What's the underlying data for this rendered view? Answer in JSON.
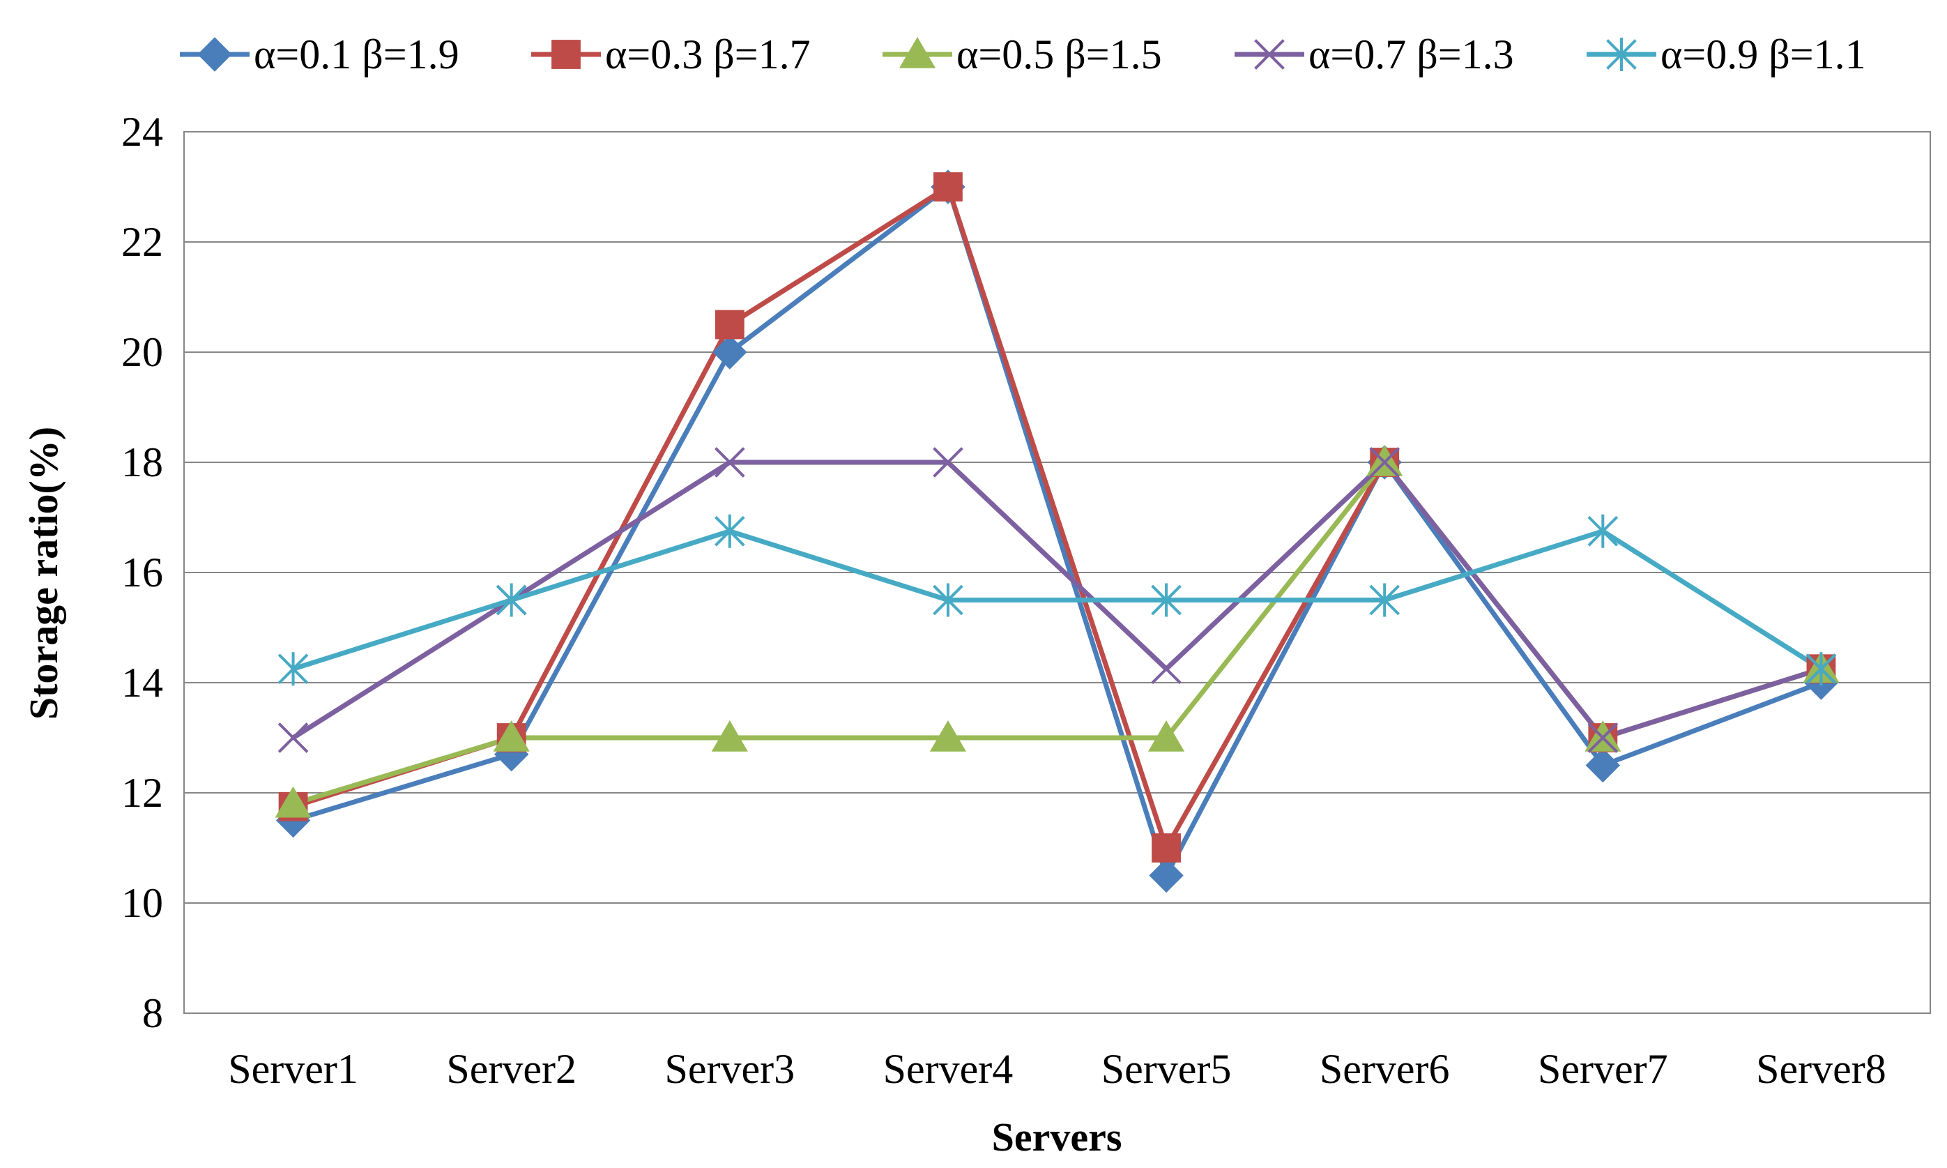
{
  "chart_data": {
    "type": "line",
    "title": "",
    "xlabel": "Servers",
    "ylabel": "Storage  ratio(%)",
    "ylim": [
      8,
      24
    ],
    "yticks": [
      8,
      10,
      12,
      14,
      16,
      18,
      20,
      22,
      24
    ],
    "grid": true,
    "legend_position": "top",
    "categories": [
      "Server1",
      "Server2",
      "Server3",
      "Server4",
      "Server5",
      "Server6",
      "Server7",
      "Server8"
    ],
    "series": [
      {
        "name": "α=0.1 β=1.9",
        "color": "#4a7ebb",
        "marker": "diamond",
        "values": [
          11.5,
          12.7,
          20.0,
          23.0,
          10.5,
          18.0,
          12.5,
          14.0
        ]
      },
      {
        "name": "α=0.3 β=1.7",
        "color": "#be4b48",
        "marker": "square",
        "values": [
          11.75,
          13.0,
          20.5,
          23.0,
          11.0,
          18.0,
          13.0,
          14.25
        ]
      },
      {
        "name": "α=0.5 β=1.5",
        "color": "#98b954",
        "marker": "triangle",
        "values": [
          11.8,
          13.0,
          13.0,
          13.0,
          13.0,
          18.0,
          13.0,
          14.25
        ]
      },
      {
        "name": "α=0.7 β=1.3",
        "color": "#7d60a0",
        "marker": "x",
        "values": [
          13.0,
          15.5,
          18.0,
          18.0,
          14.25,
          18.0,
          13.0,
          14.25
        ]
      },
      {
        "name": "α=0.9 β=1.1",
        "color": "#46aac5",
        "marker": "asterisk",
        "values": [
          14.25,
          15.5,
          16.75,
          15.5,
          15.5,
          15.5,
          16.75,
          14.25
        ]
      }
    ]
  }
}
